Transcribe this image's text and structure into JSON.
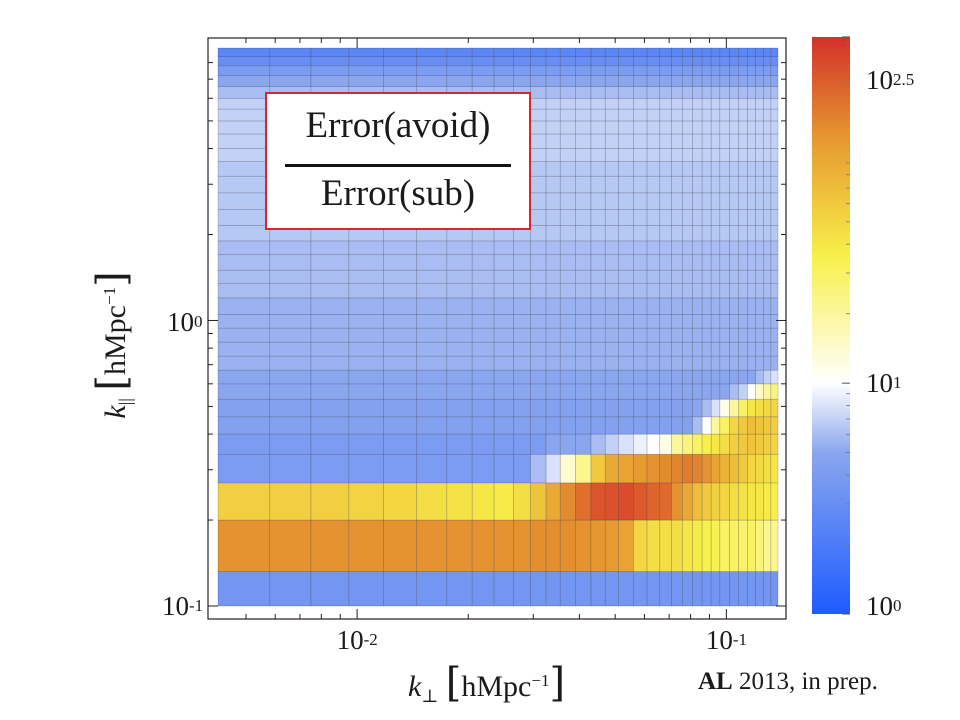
{
  "chart_data": {
    "type": "heatmap",
    "title": "",
    "xlabel": "k⊥ [hMpc⁻¹]",
    "ylabel": "k∥ [hMpc⁻¹]",
    "x_scale": "log",
    "y_scale": "log",
    "xlim": [
      0.004,
      0.14
    ],
    "ylim": [
      0.09,
      9
    ],
    "x_ticks": [
      {
        "base": "10",
        "exp": "-2"
      },
      {
        "base": "10",
        "exp": "-1"
      }
    ],
    "y_ticks": [
      {
        "base": "10",
        "exp": "-1"
      },
      {
        "base": "10",
        "exp": "0"
      }
    ],
    "colorbar": {
      "scale": "log",
      "range": [
        1,
        316
      ],
      "ticks": [
        {
          "base": "10",
          "exp": "0"
        },
        {
          "base": "10",
          "exp": "1"
        },
        {
          "base": "10",
          "exp": "2.5"
        }
      ],
      "colors": [
        "#1e5cff",
        "#8aa6ee",
        "#ffffff",
        "#f8f04a",
        "#e69a30",
        "#d4302a"
      ]
    },
    "x_bin_edges": [
      0.0042,
      0.0058,
      0.0075,
      0.0095,
      0.0118,
      0.0145,
      0.0175,
      0.0205,
      0.0235,
      0.0265,
      0.0295,
      0.0325,
      0.0355,
      0.039,
      0.043,
      0.047,
      0.051,
      0.056,
      0.061,
      0.066,
      0.071,
      0.076,
      0.081,
      0.086,
      0.091,
      0.096,
      0.102,
      0.108,
      0.114,
      0.12,
      0.126,
      0.132,
      0.138
    ],
    "y_bin_edges": [
      0.1,
      0.132,
      0.2,
      0.27,
      0.34,
      0.4,
      0.46,
      0.53,
      0.6,
      0.67,
      0.75,
      0.84,
      0.94,
      1.05,
      1.2,
      1.35,
      1.5,
      1.7,
      1.9,
      2.15,
      2.45,
      2.8,
      3.2,
      3.6,
      4.0,
      4.5,
      5.0,
      5.5,
      6.0,
      6.6,
      7.2,
      7.8,
      8.4,
      9.0
    ],
    "rows": [
      [
        3.5,
        3.5,
        3.5,
        3.5,
        3.5,
        3.5,
        3.5,
        3.5,
        3.5,
        3.5,
        3.5,
        3.5,
        3.5,
        3.5,
        3.5,
        3.5,
        3.5,
        3.5,
        3.5,
        3.5,
        3.5,
        3.5,
        3.5,
        3.5,
        3.5,
        3.5,
        3.5,
        3.5,
        3.5,
        3.5,
        3.5,
        3.5
      ],
      [
        120,
        120,
        120,
        120,
        120,
        120,
        120,
        120,
        120,
        120,
        125,
        125,
        125,
        120,
        115,
        110,
        100,
        50,
        45,
        45,
        45,
        40,
        38,
        35,
        33,
        30,
        30,
        28,
        30,
        25,
        22,
        22
      ],
      [
        55,
        55,
        55,
        52,
        50,
        45,
        42,
        40,
        38,
        45,
        65,
        90,
        130,
        170,
        220,
        230,
        240,
        210,
        190,
        180,
        120,
        90,
        70,
        60,
        55,
        50,
        45,
        42,
        40,
        40,
        38,
        36
      ],
      [
        4,
        4,
        4,
        4,
        4,
        4,
        4,
        4,
        4,
        4,
        6,
        8,
        14,
        22,
        60,
        90,
        100,
        110,
        120,
        130,
        140,
        150,
        140,
        120,
        100,
        80,
        70,
        60,
        50,
        48,
        45,
        40
      ],
      [
        4,
        4,
        4,
        4,
        4,
        4,
        4,
        4,
        4,
        4,
        4,
        5,
        5,
        5,
        6,
        7,
        8,
        9,
        10,
        12,
        20,
        25,
        30,
        35,
        40,
        45,
        55,
        60,
        65,
        60,
        55,
        50
      ],
      [
        4.5,
        4.5,
        4.5,
        4.5,
        4.5,
        4.5,
        4.5,
        4.5,
        4.5,
        4.5,
        4.5,
        4.5,
        4.5,
        4.5,
        4.5,
        4.5,
        4.5,
        4.5,
        4.5,
        4.5,
        4.5,
        4.5,
        6,
        10,
        20,
        30,
        50,
        60,
        70,
        65,
        60,
        55
      ],
      [
        4.5,
        4.5,
        4.5,
        4.5,
        4.5,
        4.5,
        4.5,
        4.5,
        4.5,
        4.5,
        4.5,
        4.5,
        4.5,
        4.5,
        4.5,
        4.5,
        4.5,
        4.5,
        4.5,
        4.5,
        4.5,
        4.5,
        5,
        6,
        8,
        12,
        20,
        30,
        40,
        45,
        48,
        50
      ],
      [
        5,
        5,
        5,
        5,
        5,
        5,
        5,
        5,
        5,
        5,
        5,
        5,
        5,
        5,
        5,
        5,
        5,
        5,
        5,
        5,
        5,
        5,
        5,
        5,
        5,
        5,
        6,
        7,
        10,
        15,
        20,
        25
      ],
      [
        5,
        5,
        5,
        5,
        5,
        5,
        5,
        5,
        5,
        5,
        5,
        5,
        5,
        5,
        5,
        5,
        5,
        5,
        5,
        5,
        5,
        5,
        5,
        5,
        5,
        5,
        5,
        5,
        5,
        6,
        7,
        8
      ],
      [
        5.5,
        5.5,
        5.5,
        5.5,
        5.5,
        5.5,
        5.5,
        5.5,
        5.5,
        5.5,
        5.5,
        5.5,
        5.5,
        5.5,
        5.5,
        5.5,
        5.5,
        5.5,
        5.5,
        5.5,
        5.5,
        5.5,
        5.5,
        5.5,
        5.5,
        5.5,
        5.5,
        5.5,
        5.5,
        5.5,
        5.5,
        5.5
      ],
      [
        5.5,
        5.5,
        5.5,
        5.5,
        5.5,
        5.5,
        5.5,
        5.5,
        5.5,
        5.5,
        5.5,
        5.5,
        5.5,
        5.5,
        5.5,
        5.5,
        5.5,
        5.5,
        5.5,
        5.5,
        5.5,
        5.5,
        5.5,
        5.5,
        5.5,
        5.5,
        5.5,
        5.5,
        5.5,
        5.5,
        5.5,
        5.5
      ],
      [
        5.5,
        5.5,
        5.5,
        5.5,
        5.5,
        5.5,
        5.5,
        5.5,
        5.5,
        5.5,
        5.5,
        5.5,
        5.5,
        5.5,
        5.5,
        5.5,
        5.5,
        5.5,
        5.5,
        5.5,
        5.5,
        5.5,
        5.5,
        5.5,
        5.5,
        5.5,
        5.5,
        5.5,
        5.5,
        5.5,
        5.5,
        5.5
      ],
      [
        5.5,
        5.5,
        5.5,
        5.5,
        5.5,
        5.5,
        5.5,
        5.5,
        5.5,
        5.5,
        5.5,
        5.5,
        5.5,
        5.5,
        5.5,
        5.5,
        5.5,
        5.5,
        5.5,
        5.5,
        5.5,
        5.5,
        5.5,
        5.5,
        5.5,
        5.5,
        5.5,
        5.5,
        5.5,
        5.5,
        5.5,
        5.5
      ],
      [
        5.5,
        5.5,
        5.5,
        5.5,
        5.5,
        5.5,
        5.5,
        5.5,
        5.5,
        5.5,
        5.5,
        5.5,
        5.5,
        5.5,
        5.5,
        5.5,
        5.5,
        5.5,
        5.5,
        5.5,
        5.5,
        5.5,
        5.5,
        5.5,
        5.5,
        5.5,
        5.5,
        5.5,
        5.5,
        5.5,
        5.5,
        5.5
      ],
      [
        6,
        6,
        6,
        6,
        6,
        6,
        6,
        6,
        6,
        6,
        6,
        6,
        6,
        6,
        6,
        6,
        6,
        6,
        6,
        6,
        6,
        6,
        6,
        6,
        6,
        6,
        6,
        6,
        6,
        6,
        6,
        6
      ],
      [
        6,
        6,
        6,
        6,
        6,
        6,
        6,
        6,
        6,
        6,
        6,
        6,
        6,
        6,
        6,
        6,
        6,
        6,
        6,
        6,
        6,
        6,
        6,
        6,
        6,
        6,
        6,
        6,
        6,
        6,
        6,
        6
      ],
      [
        6,
        6,
        6,
        6,
        6,
        6,
        6,
        6,
        6,
        6,
        6,
        6,
        6,
        6,
        6,
        6,
        6,
        6,
        6,
        6,
        6,
        6,
        6,
        6,
        6,
        6,
        6,
        6,
        6,
        6,
        6,
        6
      ],
      [
        6,
        6,
        6,
        6,
        6,
        6,
        6,
        6,
        6,
        6,
        6,
        6,
        6,
        6,
        6,
        6,
        6,
        6,
        6,
        6,
        6,
        6,
        6,
        6,
        6,
        6,
        6,
        6,
        6,
        6,
        6,
        6
      ],
      [
        6.5,
        6.5,
        6.5,
        6.5,
        6.5,
        6.5,
        6.5,
        6.5,
        6.5,
        6.5,
        6.5,
        6.5,
        6.5,
        6.5,
        6.5,
        6.5,
        6.5,
        6.5,
        6.5,
        6.5,
        6.5,
        6.5,
        6.5,
        6.5,
        6.5,
        6.5,
        6.5,
        6.5,
        6.5,
        6.5,
        6.5,
        6.5
      ],
      [
        6.5,
        6.5,
        6.5,
        6.5,
        6.5,
        6.5,
        6.5,
        6.5,
        6.5,
        6.5,
        6.5,
        6.5,
        6.5,
        6.5,
        6.5,
        6.5,
        6.5,
        6.5,
        6.5,
        6.5,
        6.5,
        6.5,
        6.5,
        6.5,
        6.5,
        6.5,
        6.5,
        6.5,
        6.5,
        6.5,
        6.5,
        6.5
      ],
      [
        6.5,
        6.5,
        6.5,
        6.5,
        6.5,
        6.5,
        6.5,
        6.5,
        6.5,
        6.5,
        6.5,
        6.5,
        6.5,
        6.5,
        6.5,
        6.5,
        6.5,
        6.5,
        6.5,
        6.5,
        6.5,
        6.5,
        6.5,
        6.5,
        6.5,
        6.5,
        6.5,
        6.5,
        6.5,
        6.5,
        6.5,
        6.5
      ],
      [
        6.5,
        6.5,
        6.5,
        6.5,
        6.5,
        6.5,
        6.5,
        6.5,
        6.5,
        6.5,
        6.5,
        6.5,
        6.5,
        6.5,
        6.5,
        6.5,
        6.5,
        6.5,
        6.5,
        6.5,
        6.5,
        6.5,
        6.5,
        6.5,
        6.5,
        6.5,
        6.5,
        6.5,
        6.5,
        6.5,
        6.5,
        6.5
      ],
      [
        6.5,
        6.5,
        6.5,
        6.5,
        6.5,
        6.5,
        6.5,
        6.5,
        6.5,
        6.5,
        6.5,
        6.5,
        6.5,
        6.5,
        6.5,
        6.5,
        6.5,
        6.5,
        6.5,
        6.5,
        6.5,
        6.5,
        6.5,
        6.5,
        6.5,
        6.5,
        6.5,
        6.5,
        6.5,
        6.5,
        6.5,
        6.5
      ],
      [
        7,
        7,
        7,
        7,
        7,
        7,
        7,
        7,
        7,
        7,
        7,
        7,
        7,
        7,
        7,
        7,
        7,
        7,
        7,
        7,
        7,
        7,
        7,
        7,
        7,
        7,
        7,
        7,
        7,
        7,
        7,
        7
      ],
      [
        7,
        7,
        7,
        7,
        7,
        7,
        7,
        7,
        7,
        7,
        7,
        7,
        7,
        7,
        7,
        7,
        7,
        7,
        7,
        7,
        7,
        7,
        7,
        7,
        7,
        7,
        7,
        7,
        7,
        7,
        7,
        7
      ],
      [
        7,
        7,
        7,
        7,
        7,
        7,
        7,
        7,
        7,
        7,
        7,
        7,
        7,
        7,
        7,
        7,
        7,
        7,
        7,
        7,
        7,
        7,
        7,
        7,
        7,
        7,
        7,
        7,
        7,
        7,
        7,
        7
      ],
      [
        7,
        7,
        7,
        7,
        7,
        7,
        7,
        7,
        7,
        7,
        7,
        7,
        7,
        7,
        7,
        7,
        7,
        7,
        7,
        7,
        7,
        7,
        7,
        7,
        7,
        7,
        7,
        7,
        7,
        7,
        7,
        7
      ],
      [
        7,
        7,
        7,
        7,
        7,
        7,
        7,
        7,
        7,
        7,
        7,
        7,
        7,
        7,
        7,
        7,
        7,
        7,
        7,
        7,
        7,
        7,
        7,
        7,
        7,
        7,
        7,
        7,
        7,
        7,
        7,
        7
      ],
      [
        6,
        6,
        6,
        6,
        6,
        6,
        6,
        6,
        6,
        6,
        6,
        6,
        6,
        6,
        6,
        6,
        6,
        6,
        6,
        6,
        6,
        6,
        6,
        6,
        6,
        6,
        6,
        6,
        6,
        6,
        6,
        6
      ],
      [
        5,
        5,
        5,
        5,
        5,
        5,
        5,
        5,
        5,
        5,
        5,
        5,
        5,
        5,
        5,
        5,
        5,
        5,
        5,
        5,
        5,
        5,
        5,
        5,
        5,
        5,
        5,
        5,
        5,
        5,
        5,
        5
      ],
      [
        4,
        4,
        4,
        4,
        4,
        4,
        4,
        4,
        4,
        4,
        4,
        4,
        4,
        4,
        4,
        4,
        4,
        4,
        4,
        4,
        4,
        4,
        4,
        4,
        4,
        4,
        4,
        4,
        4,
        4,
        4,
        4
      ],
      [
        3,
        3,
        3,
        3,
        3,
        3,
        3,
        3,
        3,
        3,
        3,
        3,
        3,
        3,
        3,
        3,
        3,
        3,
        3,
        3,
        3,
        3,
        3,
        3,
        3,
        3,
        3,
        3,
        3,
        3,
        3,
        3
      ],
      [
        2.5,
        2.5,
        2.5,
        2.5,
        2.5,
        2.5,
        2.5,
        2.5,
        2.5,
        2.5,
        2.5,
        2.5,
        2.5,
        2.5,
        2.5,
        2.5,
        2.5,
        2.5,
        2.5,
        2.5,
        2.5,
        2.5,
        2.5,
        2.5,
        2.5,
        2.5,
        2.5,
        2.5,
        2.5,
        2.5,
        2.5,
        2.5
      ]
    ]
  },
  "formula": {
    "numerator": "Error(avoid)",
    "denominator": "Error(sub)"
  },
  "axis_labels": {
    "x": {
      "symbol": "k",
      "subscript": "⊥",
      "open": "[",
      "unit": "hMpc",
      "exp": "−1",
      "close": "]"
    },
    "y": {
      "symbol": "k",
      "subscript": "||",
      "open": "[",
      "unit": "hMpc",
      "exp": "−1",
      "close": "]"
    }
  },
  "credit": {
    "bold": "AL",
    "rest": " 2013, in prep."
  }
}
